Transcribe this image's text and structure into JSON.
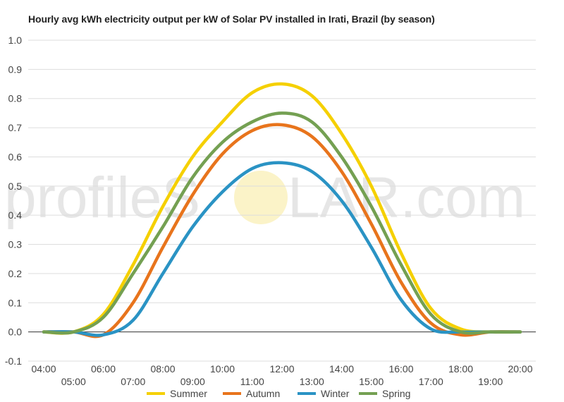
{
  "chart_data": {
    "type": "line",
    "title": "Hourly avg kWh electricity output per kW of Solar PV installed in Irati, Brazil (by season)",
    "xlabel": "",
    "ylabel": "",
    "ylim": [
      -0.1,
      1.0
    ],
    "yticks": [
      "1.0",
      "0.9",
      "0.8",
      "0.7",
      "0.6",
      "0.5",
      "0.4",
      "0.3",
      "0.2",
      "0.1",
      "0.0",
      "-0.1"
    ],
    "x": [
      "04:00",
      "05:00",
      "06:00",
      "07:00",
      "08:00",
      "09:00",
      "10:00",
      "11:00",
      "12:00",
      "13:00",
      "14:00",
      "15:00",
      "16:00",
      "17:00",
      "18:00",
      "19:00",
      "20:00"
    ],
    "grid": true,
    "legend_position": "bottom",
    "series": [
      {
        "name": "Summer",
        "color": "#f5d000",
        "values": [
          0.0,
          0.0,
          0.06,
          0.23,
          0.43,
          0.6,
          0.72,
          0.82,
          0.85,
          0.81,
          0.68,
          0.5,
          0.27,
          0.08,
          0.01,
          0.0,
          0.0
        ]
      },
      {
        "name": "Autumn",
        "color": "#e8741c",
        "values": [
          0.0,
          0.0,
          -0.01,
          0.1,
          0.29,
          0.47,
          0.61,
          0.69,
          0.71,
          0.67,
          0.55,
          0.37,
          0.17,
          0.03,
          -0.01,
          0.0,
          0.0
        ]
      },
      {
        "name": "Winter",
        "color": "#2a93c4",
        "values": [
          0.0,
          0.0,
          -0.01,
          0.04,
          0.2,
          0.36,
          0.48,
          0.56,
          0.58,
          0.55,
          0.45,
          0.29,
          0.11,
          0.01,
          0.0,
          0.0,
          0.0
        ]
      },
      {
        "name": "Spring",
        "color": "#74a052",
        "values": [
          0.0,
          0.0,
          0.05,
          0.2,
          0.36,
          0.53,
          0.65,
          0.72,
          0.75,
          0.72,
          0.6,
          0.43,
          0.23,
          0.06,
          0.0,
          0.0,
          0.0
        ]
      }
    ],
    "watermark": {
      "text_left": "profileS",
      "text_right": "LAR.com"
    }
  }
}
